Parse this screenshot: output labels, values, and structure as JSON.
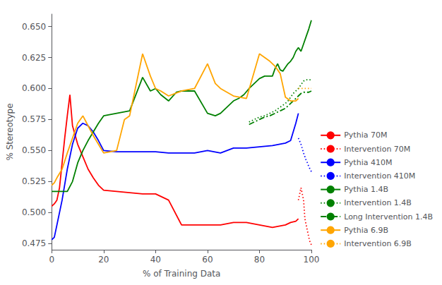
{
  "chart_data": {
    "type": "line",
    "xlabel": "% of Training Data",
    "ylabel": "% Stereotype",
    "xlim": [
      0,
      100
    ],
    "ylim": [
      0.47,
      0.66
    ],
    "xticks": [
      0,
      20,
      40,
      60,
      80,
      100
    ],
    "yticks": [
      0.475,
      {
        "value": 0.5,
        "label": "0.500"
      },
      0.525,
      {
        "value": 0.55,
        "label": "0.550"
      },
      0.575,
      {
        "value": 0.6,
        "label": "0.600"
      },
      0.625,
      {
        "value": 0.65,
        "label": "0.650"
      }
    ],
    "grid": false,
    "legend": "lower right",
    "series": [
      {
        "name": "Pythia 70M",
        "color": "#FF0000",
        "line_style": "solid",
        "x": [
          0,
          1,
          2,
          3,
          4,
          5,
          6,
          7,
          8,
          10,
          12,
          14,
          16,
          18,
          20,
          25,
          30,
          35,
          40,
          45,
          50,
          55,
          60,
          65,
          70,
          75,
          80,
          85,
          90,
          92,
          94,
          95
        ],
        "values": [
          0.505,
          0.507,
          0.51,
          0.52,
          0.54,
          0.56,
          0.578,
          0.595,
          0.57,
          0.555,
          0.545,
          0.535,
          0.528,
          0.522,
          0.518,
          0.517,
          0.516,
          0.515,
          0.515,
          0.51,
          0.49,
          0.49,
          0.49,
          0.49,
          0.492,
          0.492,
          0.49,
          0.488,
          0.49,
          0.492,
          0.493,
          0.495
        ]
      },
      {
        "name": "Intervention 70M",
        "color": "#FF0000",
        "line_style": "dotted",
        "x": [
          95,
          96,
          97,
          97.5,
          98,
          98.5,
          99,
          99.5,
          100
        ],
        "values": [
          0.51,
          0.52,
          0.51,
          0.495,
          0.49,
          0.485,
          0.48,
          0.476,
          0.474
        ]
      },
      {
        "name": "Pythia 410M",
        "color": "#0000FF",
        "line_style": "solid",
        "x": [
          0,
          1,
          2,
          4,
          6,
          8,
          10,
          12,
          14,
          16,
          18,
          20,
          25,
          30,
          35,
          40,
          45,
          50,
          55,
          60,
          65,
          70,
          75,
          80,
          85,
          90,
          92,
          94,
          95
        ],
        "values": [
          0.478,
          0.48,
          0.49,
          0.51,
          0.535,
          0.555,
          0.568,
          0.572,
          0.57,
          0.565,
          0.558,
          0.55,
          0.549,
          0.549,
          0.549,
          0.549,
          0.548,
          0.548,
          0.548,
          0.55,
          0.548,
          0.552,
          0.552,
          0.553,
          0.554,
          0.556,
          0.558,
          0.572,
          0.58
        ]
      },
      {
        "name": "Intervention 410M",
        "color": "#0000FF",
        "line_style": "dotted",
        "x": [
          95,
          96,
          97,
          97.5,
          98,
          98.5,
          99,
          99.5,
          100
        ],
        "values": [
          0.56,
          0.555,
          0.548,
          0.545,
          0.542,
          0.54,
          0.537,
          0.535,
          0.533
        ]
      },
      {
        "name": "Pythia 1.4B",
        "color": "#008000",
        "line_style": "solid",
        "x": [
          0,
          1,
          2,
          4,
          6,
          8,
          10,
          12,
          14,
          16,
          18,
          20,
          25,
          30,
          35,
          38,
          40,
          42,
          45,
          48,
          50,
          55,
          60,
          63,
          65,
          70,
          72,
          74,
          76,
          78,
          80,
          82,
          84,
          85,
          86,
          87,
          88,
          89,
          90,
          91,
          92,
          93,
          94,
          95,
          96,
          97,
          98,
          99,
          100
        ],
        "values": [
          0.517,
          0.517,
          0.517,
          0.517,
          0.517,
          0.525,
          0.54,
          0.55,
          0.558,
          0.565,
          0.572,
          0.578,
          0.58,
          0.582,
          0.609,
          0.598,
          0.6,
          0.595,
          0.59,
          0.597,
          0.598,
          0.598,
          0.58,
          0.578,
          0.58,
          0.59,
          0.592,
          0.595,
          0.6,
          0.604,
          0.608,
          0.61,
          0.61,
          0.61,
          0.616,
          0.62,
          0.615,
          0.614,
          0.617,
          0.62,
          0.622,
          0.625,
          0.63,
          0.633,
          0.63,
          0.636,
          0.642,
          0.648,
          0.655
        ]
      },
      {
        "name": "Intervention 1.4B",
        "color": "#008000",
        "line_style": "dotted",
        "x": [
          76,
          78,
          80,
          82,
          84,
          86,
          88,
          90,
          91,
          92,
          93,
          94,
          95,
          96,
          97,
          98,
          99,
          100
        ],
        "values": [
          0.573,
          0.575,
          0.577,
          0.578,
          0.58,
          0.582,
          0.585,
          0.588,
          0.59,
          0.593,
          0.596,
          0.598,
          0.6,
          0.603,
          0.606,
          0.607,
          0.607,
          0.607
        ]
      },
      {
        "name": "Long Intervention 1.4B",
        "color": "#008000",
        "line_style": "dashdot",
        "x": [
          76,
          78,
          80,
          82,
          84,
          86,
          88,
          90,
          91,
          92,
          93,
          94,
          95,
          96,
          97,
          98,
          99,
          100
        ],
        "values": [
          0.571,
          0.573,
          0.575,
          0.577,
          0.578,
          0.58,
          0.582,
          0.584,
          0.586,
          0.588,
          0.59,
          0.592,
          0.594,
          0.596,
          0.597,
          0.597,
          0.597,
          0.598
        ]
      },
      {
        "name": "Pythia 6.9B",
        "color": "#FFA500",
        "line_style": "solid",
        "x": [
          0,
          1,
          2,
          4,
          6,
          8,
          10,
          12,
          14,
          16,
          18,
          20,
          25,
          28,
          30,
          35,
          38,
          40,
          42,
          45,
          50,
          55,
          60,
          63,
          65,
          70,
          75,
          80,
          82,
          84,
          86,
          88,
          90,
          92,
          94,
          95
        ],
        "values": [
          0.522,
          0.524,
          0.528,
          0.535,
          0.548,
          0.56,
          0.572,
          0.578,
          0.57,
          0.562,
          0.555,
          0.548,
          0.55,
          0.575,
          0.578,
          0.628,
          0.61,
          0.6,
          0.598,
          0.594,
          0.598,
          0.6,
          0.62,
          0.604,
          0.6,
          0.594,
          0.592,
          0.628,
          0.625,
          0.622,
          0.618,
          0.612,
          0.593,
          0.59,
          0.59,
          0.592
        ]
      },
      {
        "name": "Intervention 6.9B",
        "color": "#FFA500",
        "line_style": "dotted",
        "x": [
          95,
          96,
          97,
          97.5,
          98,
          98.5,
          99,
          99.5,
          100
        ],
        "values": [
          0.6,
          0.6,
          0.6,
          0.6,
          0.6,
          0.6,
          0.6,
          0.6,
          0.6
        ]
      }
    ]
  }
}
